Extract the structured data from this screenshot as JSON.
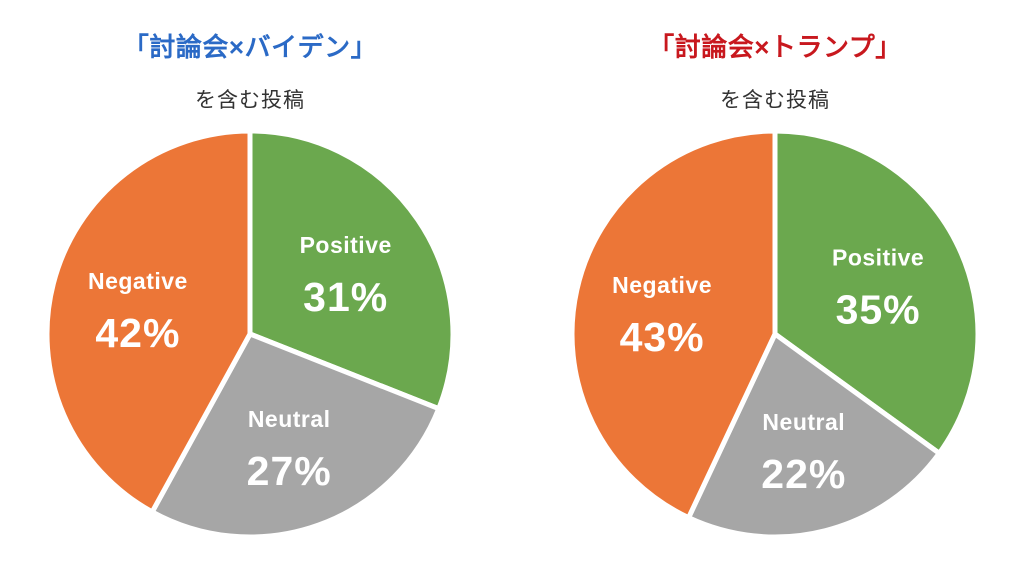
{
  "page": {
    "background_color": "#ffffff"
  },
  "chart_data": [
    {
      "id": "debate-biden",
      "type": "pie",
      "title": "「討論会×バイデン」",
      "title_color": "#2b6ac6",
      "subtitle": "を含む投稿",
      "categories": [
        "Positive",
        "Neutral",
        "Negative"
      ],
      "values": [
        31,
        27,
        42
      ],
      "unit": "%",
      "slice_colors": [
        "#6ba84e",
        "#a6a6a6",
        "#ec7637"
      ],
      "label_text_color": "#ffffff",
      "start_angle_deg": 0,
      "clockwise": true,
      "legend": "none",
      "labels_inside": true,
      "slice_border_color": "#ffffff"
    },
    {
      "id": "debate-trump",
      "type": "pie",
      "title": "「討論会×トランプ」",
      "title_color": "#c8181e",
      "subtitle": "を含む投稿",
      "categories": [
        "Positive",
        "Neutral",
        "Negative"
      ],
      "values": [
        35,
        22,
        43
      ],
      "unit": "%",
      "slice_colors": [
        "#6ba84e",
        "#a6a6a6",
        "#ec7637"
      ],
      "label_text_color": "#ffffff",
      "start_angle_deg": 0,
      "clockwise": true,
      "legend": "none",
      "labels_inside": true,
      "slice_border_color": "#ffffff"
    }
  ]
}
